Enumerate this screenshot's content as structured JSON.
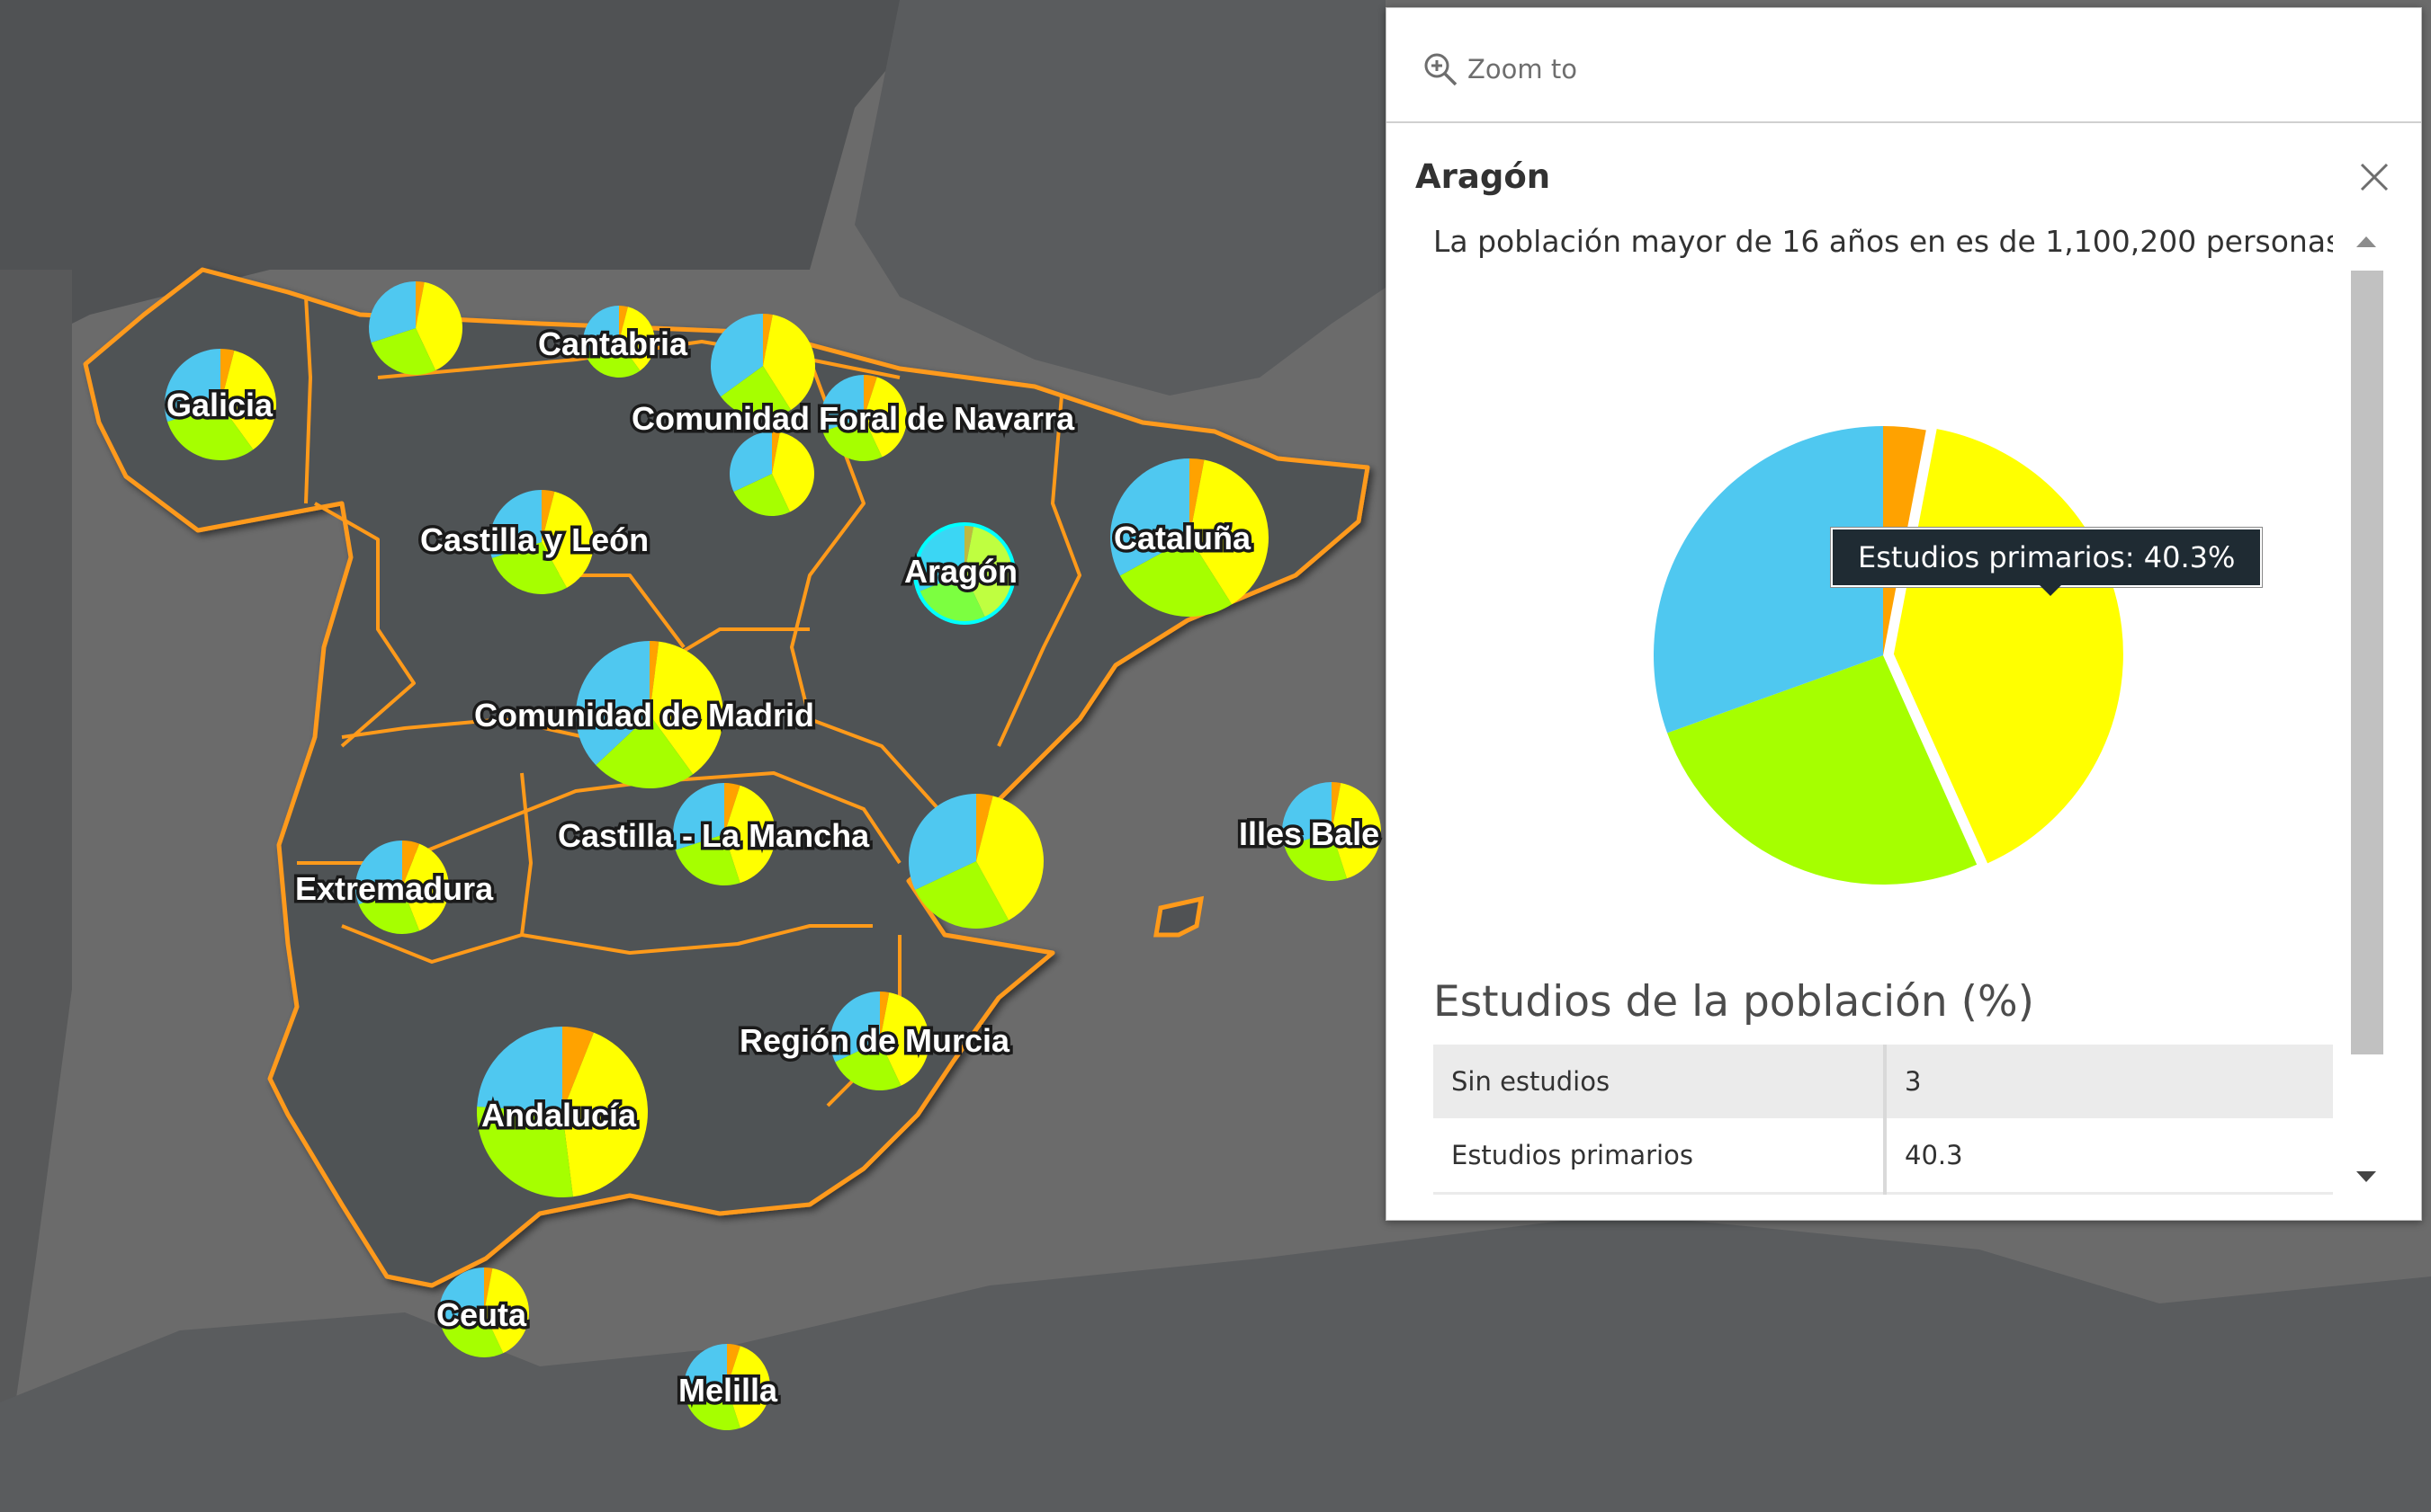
{
  "map": {
    "sea_color": "#6b6b6b",
    "land_color": "#505254",
    "border_color": "#ff9a1a",
    "region_labels": [
      "Galicia",
      "Cantabria",
      "Comunidad Foral de Navarra",
      "Castilla y León",
      "Aragón",
      "Cataluña",
      "Comunidad de Madrid",
      "Castilla - La Mancha",
      "Extremadura",
      "Illes Bale",
      "Región de Murcia",
      "Andalucía",
      "Ceuta",
      "Melilla"
    ],
    "category_colors": {
      "sin_estudios": "#ffa200",
      "estudios_primarios": "#ffff00",
      "estudios_secundarios": "#a6ff00",
      "estudios_superiores": "#4fc8f0"
    }
  },
  "popup": {
    "zoom_label": "Zoom to",
    "title": "Aragón",
    "description": "La población mayor de 16 años en es de 1,100,200 personas.",
    "tooltip": "Estudios primarios: 40.3%",
    "section_title": "Estudios de la población (%)",
    "table_rows": [
      {
        "label": "Sin estudios",
        "value": "3"
      },
      {
        "label": "Estudios primarios",
        "value": "40.3"
      }
    ],
    "icons": {
      "zoom": "zoom-in-icon",
      "close": "close-icon"
    }
  },
  "chart_data": {
    "type": "pie",
    "values": [
      3,
      40.3,
      26.2,
      30.5
    ],
    "colors": [
      "#ffa200",
      "#ffff00",
      "#a6ff00",
      "#4fc8f0"
    ]
  }
}
